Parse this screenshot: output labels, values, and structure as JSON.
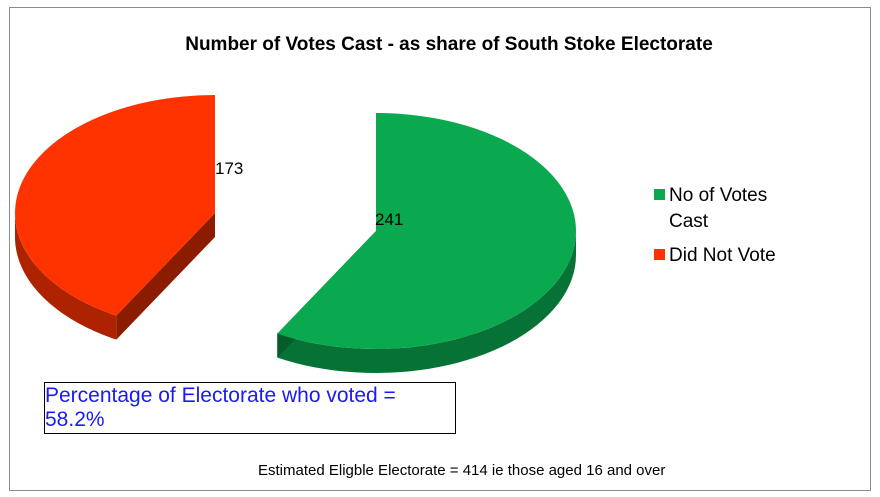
{
  "chart_data": {
    "type": "pie",
    "title": "Number of Votes Cast - as share of South Stoke Electorate",
    "categories": [
      "No of Votes Cast",
      "Did Not Vote"
    ],
    "values": [
      241,
      173
    ],
    "data_labels": [
      "241",
      "173"
    ],
    "colors": [
      "#0aa84f",
      "#ff3300"
    ],
    "exploded": true,
    "three_d": true,
    "legend_position": "right"
  },
  "annotation": "Percentage of Electorate who voted = 58.2%",
  "footnote": "Estimated Eligble Electorate = 414 ie those aged 16 and over"
}
